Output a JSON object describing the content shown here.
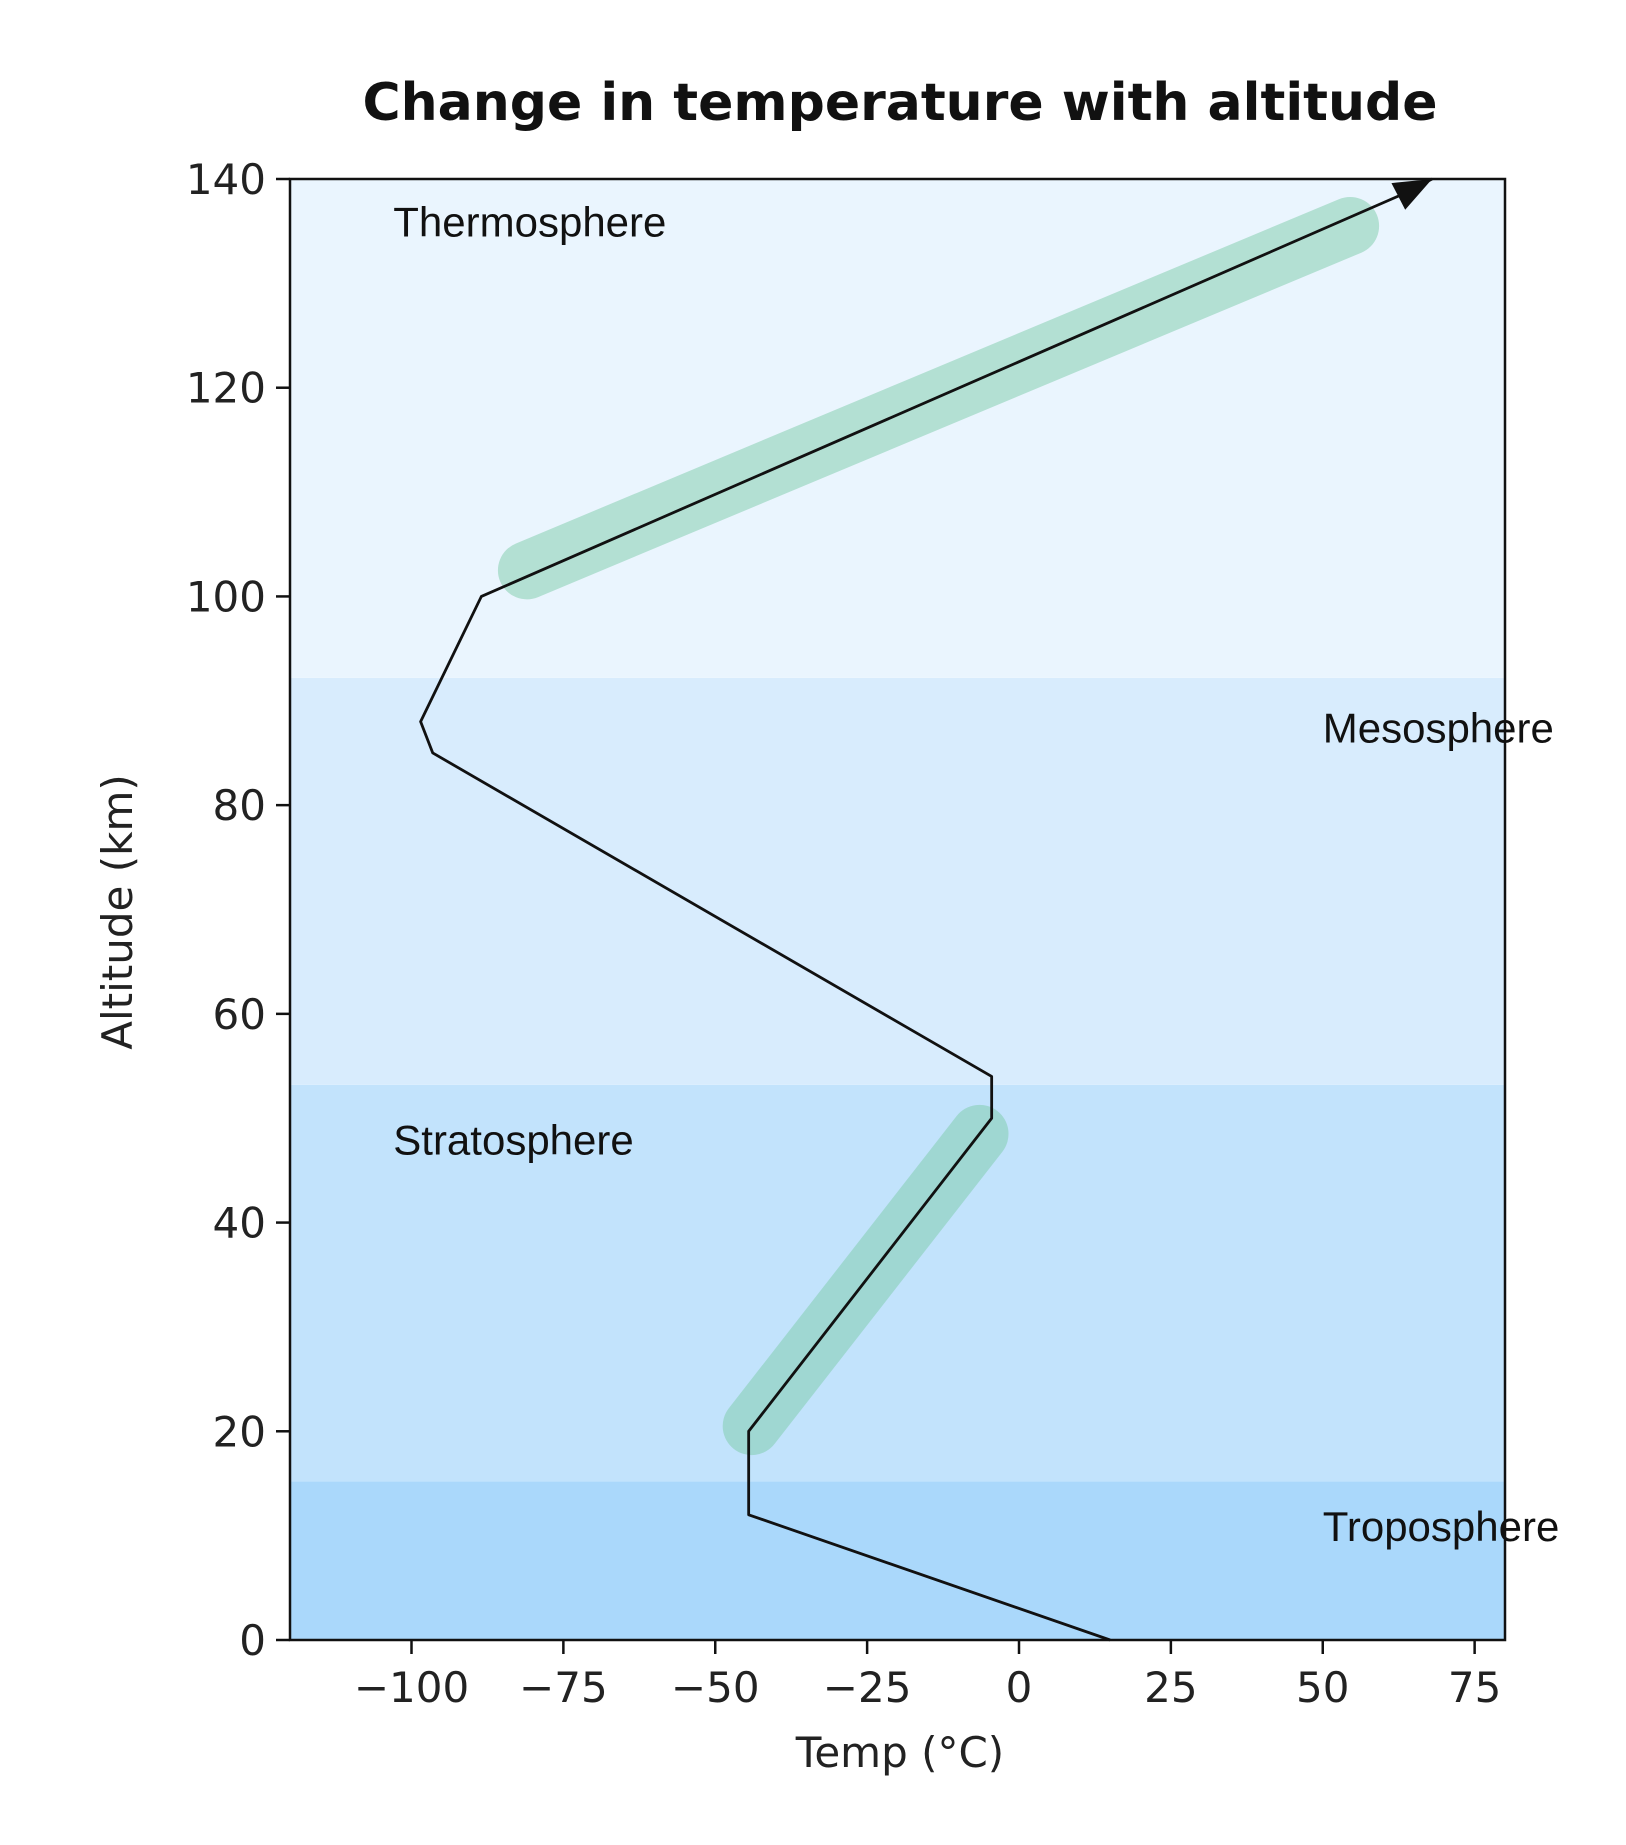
{
  "chart_data": {
    "type": "line",
    "title": "Change in temperature with altitude",
    "xlabel": "Temp (°C)",
    "ylabel": "Altitude (km)",
    "xlim": [
      -120,
      80
    ],
    "ylim": [
      0,
      140
    ],
    "xticks": [
      {
        "value": -100,
        "label": "−100"
      },
      {
        "value": -75,
        "label": "−75"
      },
      {
        "value": -50,
        "label": "−50"
      },
      {
        "value": -25,
        "label": "−25"
      },
      {
        "value": 0,
        "label": "0"
      },
      {
        "value": 25,
        "label": "25"
      },
      {
        "value": 50,
        "label": "50"
      },
      {
        "value": 75,
        "label": "75"
      }
    ],
    "yticks": [
      {
        "value": 0,
        "label": "0"
      },
      {
        "value": 20,
        "label": "20"
      },
      {
        "value": 40,
        "label": "40"
      },
      {
        "value": 60,
        "label": "60"
      },
      {
        "value": 80,
        "label": "80"
      },
      {
        "value": 100,
        "label": "100"
      },
      {
        "value": 120,
        "label": "120"
      },
      {
        "value": 140,
        "label": "140"
      }
    ],
    "grid": false,
    "layers": [
      {
        "label": "Troposphere",
        "y_range": [
          0,
          15.2
        ],
        "color": "#aad8fb",
        "label_position": "right",
        "label_x": 50,
        "label_y": 9.5
      },
      {
        "label": "Stratosphere",
        "y_range": [
          15.2,
          53.2
        ],
        "color": "#c2e3fc",
        "label_position": "left",
        "label_x": -103,
        "label_y": 46.5
      },
      {
        "label": "Mesosphere",
        "y_range": [
          53.2,
          92.2
        ],
        "color": "#d8ecfd",
        "label_position": "right",
        "label_x": 50,
        "label_y": 86
      },
      {
        "label": "Thermosphere",
        "y_range": [
          92.2,
          140
        ],
        "color": "#eaf5fe",
        "label_position": "left",
        "label_x": -103,
        "label_y": 134.5
      }
    ],
    "series": [
      {
        "color": "#111111",
        "arrow_at_end": true,
        "points": [
          {
            "x": 15,
            "y": 0
          },
          {
            "x": -44.5,
            "y": 12
          },
          {
            "x": -44.5,
            "y": 20
          },
          {
            "x": -4.5,
            "y": 50
          },
          {
            "x": -4.5,
            "y": 54
          },
          {
            "x": -96.5,
            "y": 85
          },
          {
            "x": -98.5,
            "y": 88
          },
          {
            "x": -88.5,
            "y": 100
          },
          {
            "x": 63,
            "y": 138.5
          },
          {
            "x": 68,
            "y": 140
          }
        ]
      }
    ],
    "highlights": [
      {
        "color": "#7ccca7",
        "opacity": 0.5,
        "from": {
          "x": -81,
          "y": 102.5
        },
        "to": {
          "x": 54.5,
          "y": 135.5
        }
      },
      {
        "color": "#7ccca7",
        "opacity": 0.5,
        "from": {
          "x": -44,
          "y": 20.5
        },
        "to": {
          "x": -6.5,
          "y": 48.5
        }
      }
    ]
  }
}
